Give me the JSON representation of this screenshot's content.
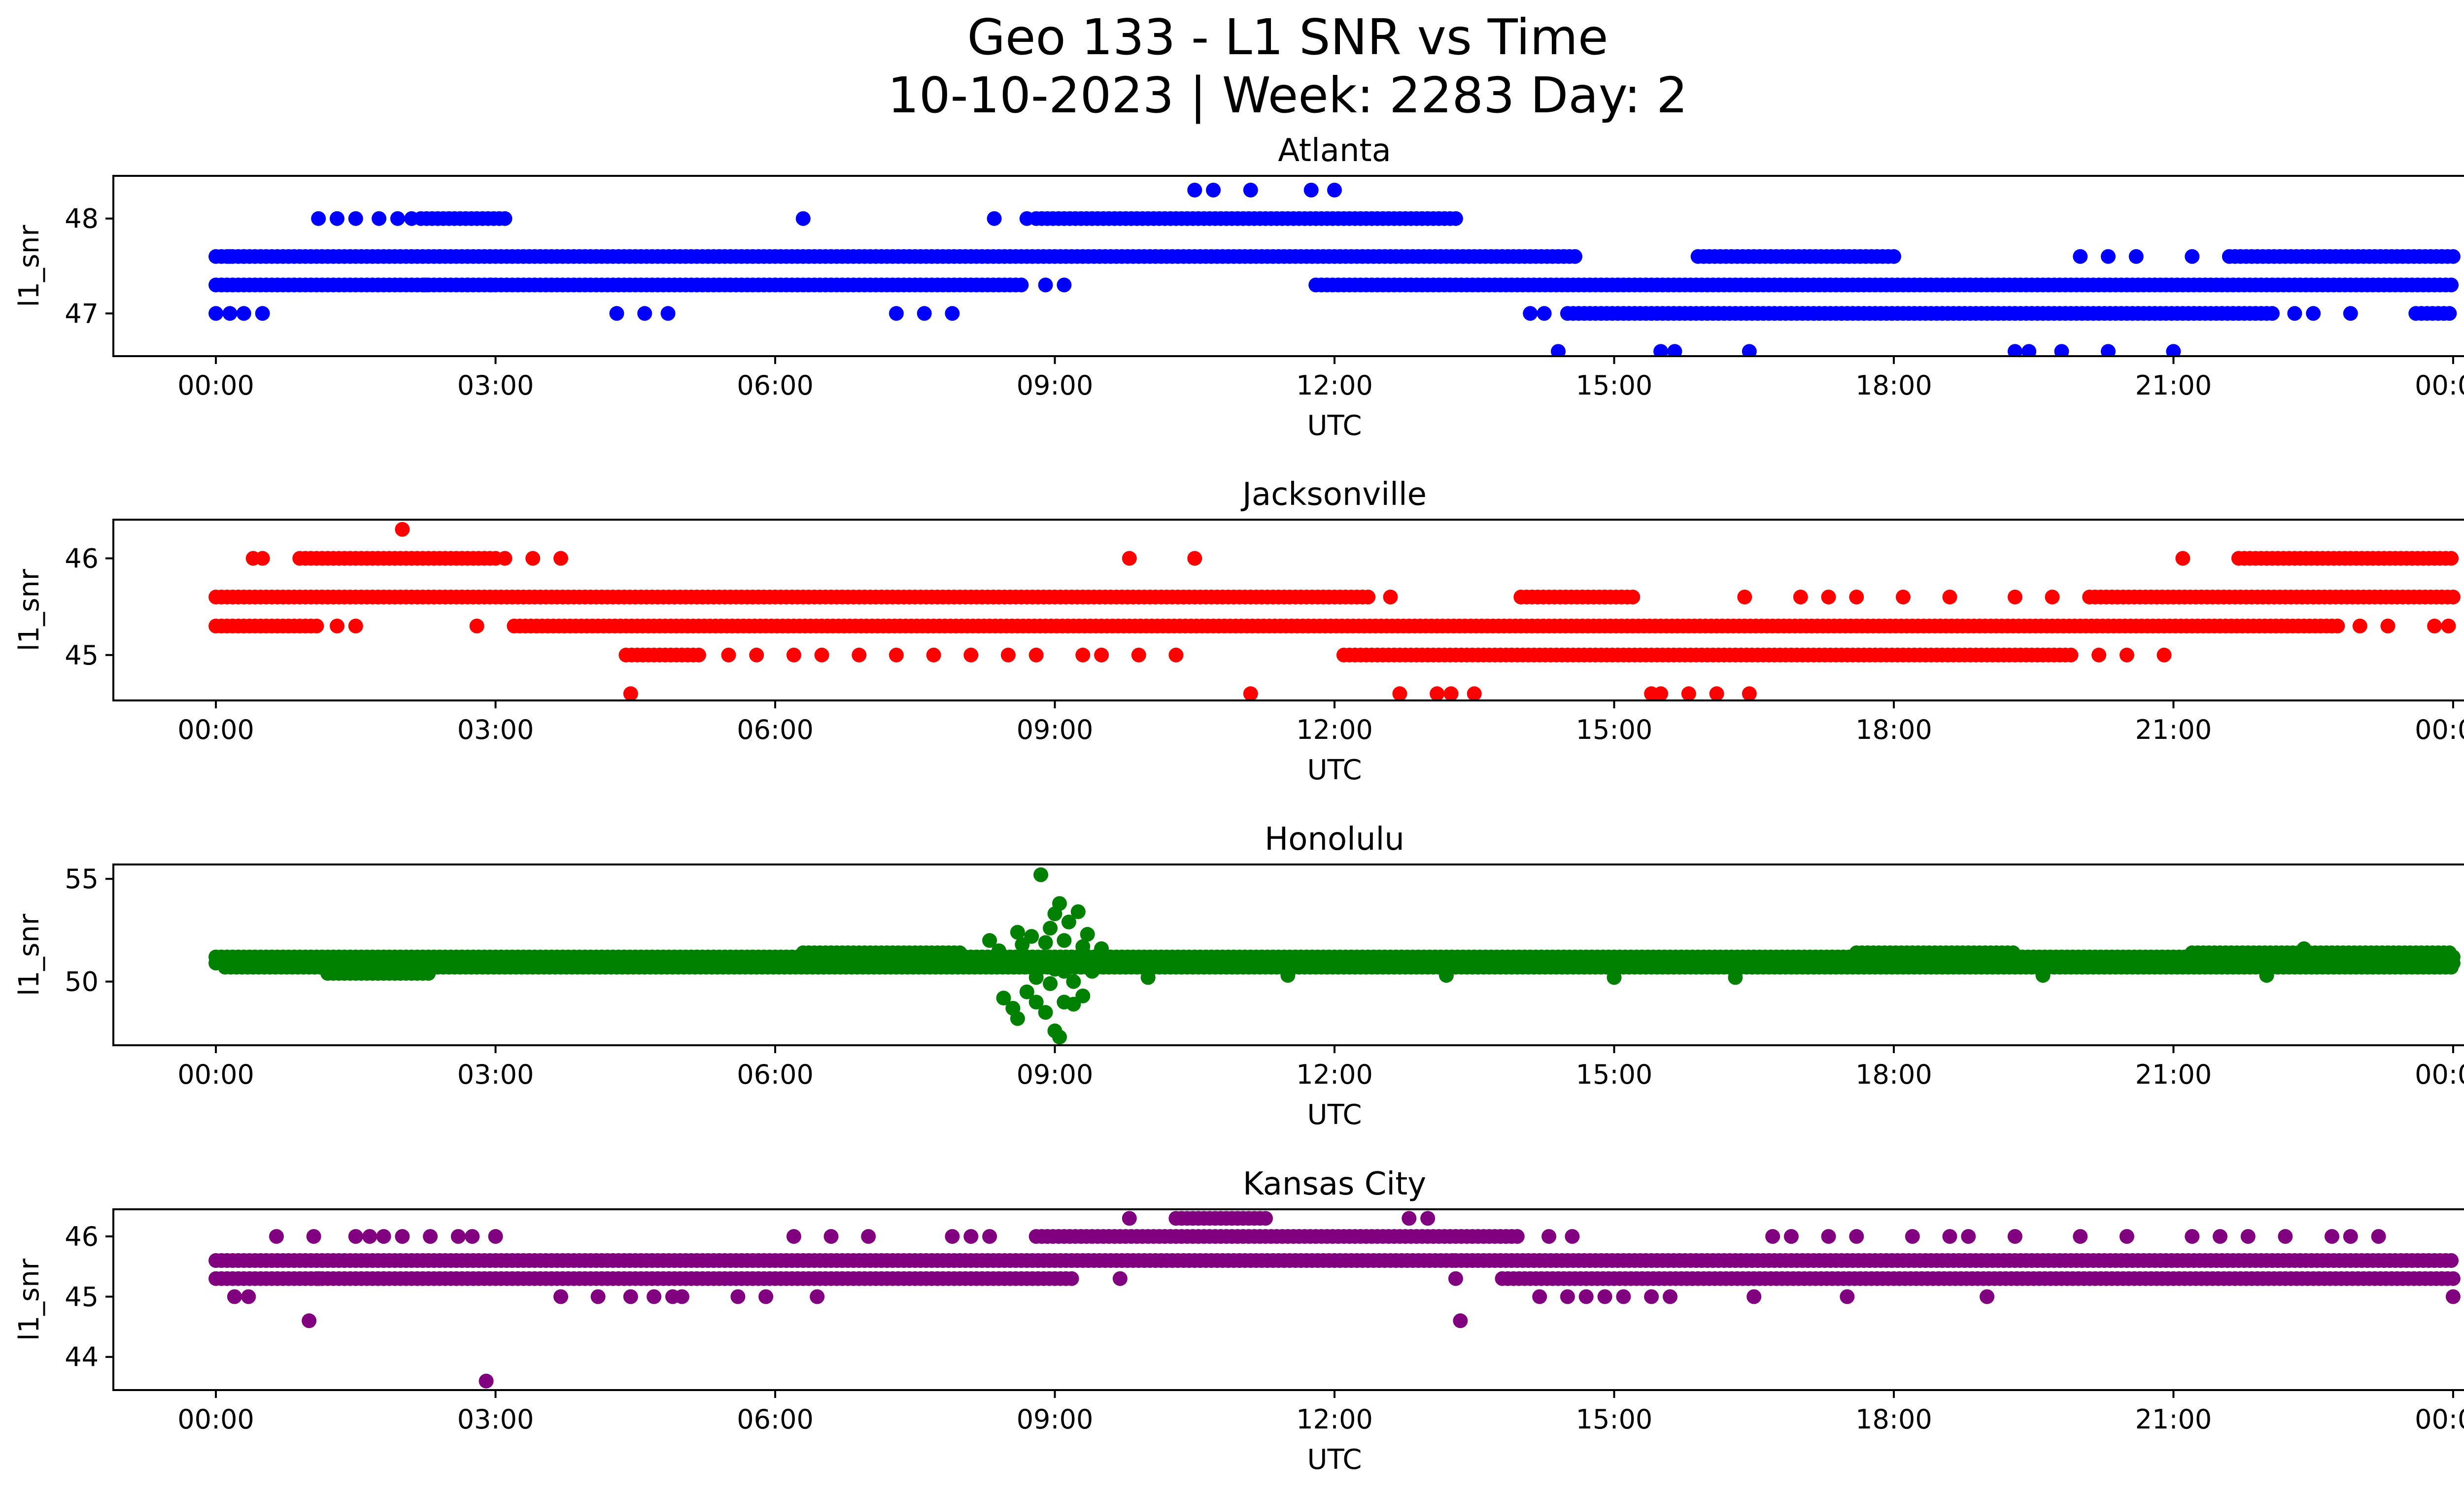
{
  "chart_data": {
    "type": "scatter",
    "title": "Geo 133 - L1 SNR vs Time",
    "subtitle": "10-10-2023 | Week: 2283 Day: 2",
    "x_ticks": [
      "00:00",
      "03:00",
      "06:00",
      "09:00",
      "12:00",
      "15:00",
      "18:00",
      "21:00",
      "00:00"
    ],
    "xlim": [
      -1.1,
      25.1
    ],
    "grid": false,
    "panels": [
      {
        "title": "Atlanta",
        "xlabel": "UTC",
        "ylabel": "l1_snr",
        "color": "#0000ff",
        "ylim": [
          46.55,
          48.45
        ],
        "y_ticks": [
          47,
          48
        ],
        "bands": [
          {
            "y": 47.6,
            "x": [
              [
                0.0,
                14.6
              ],
              [
                15.9,
                18.0
              ],
              [
                21.6,
                24.0
              ]
            ]
          },
          {
            "y": 47.3,
            "x": [
              [
                0.0,
                8.65
              ],
              [
                11.8,
                24.0
              ]
            ]
          },
          {
            "y": 47.0,
            "x": [
              [
                14.5,
                22.1
              ],
              [
                23.6,
                24.0
              ]
            ]
          },
          {
            "y": 48.0,
            "x": [
              [
                2.2,
                3.15
              ],
              [
                8.8,
                13.3
              ]
            ]
          }
        ],
        "points": [
          [
            0.0,
            47.0
          ],
          [
            0.15,
            47.0
          ],
          [
            0.3,
            47.0
          ],
          [
            0.5,
            47.0
          ],
          [
            4.3,
            47.0
          ],
          [
            4.6,
            47.0
          ],
          [
            4.85,
            47.0
          ],
          [
            7.3,
            47.0
          ],
          [
            7.6,
            47.0
          ],
          [
            7.9,
            47.0
          ],
          [
            14.1,
            47.0
          ],
          [
            14.25,
            47.0
          ],
          [
            22.3,
            47.0
          ],
          [
            22.5,
            47.0
          ],
          [
            22.9,
            47.0
          ],
          [
            1.1,
            48.0
          ],
          [
            1.3,
            48.0
          ],
          [
            1.5,
            48.0
          ],
          [
            1.75,
            48.0
          ],
          [
            1.95,
            48.0
          ],
          [
            2.1,
            48.0
          ],
          [
            6.3,
            48.0
          ],
          [
            8.35,
            48.0
          ],
          [
            8.7,
            48.0
          ],
          [
            0.15,
            47.6
          ],
          [
            0.3,
            47.6
          ],
          [
            2.25,
            47.3
          ],
          [
            2.7,
            47.3
          ],
          [
            2.95,
            47.3
          ],
          [
            8.9,
            47.3
          ],
          [
            9.1,
            47.3
          ],
          [
            14.4,
            46.6
          ],
          [
            15.5,
            46.6
          ],
          [
            15.65,
            46.6
          ],
          [
            16.45,
            46.6
          ],
          [
            19.3,
            46.6
          ],
          [
            19.45,
            46.6
          ],
          [
            19.8,
            46.6
          ],
          [
            20.3,
            46.6
          ],
          [
            21.0,
            46.6
          ],
          [
            10.5,
            48.3
          ],
          [
            10.7,
            48.3
          ],
          [
            11.1,
            48.3
          ],
          [
            11.75,
            48.3
          ],
          [
            12.0,
            48.3
          ],
          [
            20.0,
            47.6
          ],
          [
            20.3,
            47.6
          ],
          [
            20.6,
            47.6
          ],
          [
            21.2,
            47.6
          ]
        ]
      },
      {
        "title": "Jacksonville",
        "xlabel": "UTC",
        "ylabel": "l1_snr",
        "color": "#ff0000",
        "ylim": [
          44.53,
          46.4
        ],
        "y_ticks": [
          45,
          46
        ],
        "bands": [
          {
            "y": 45.6,
            "x": [
              [
                0.0,
                12.4
              ],
              [
                14.0,
                15.2
              ],
              [
                20.1,
                24.0
              ]
            ]
          },
          {
            "y": 45.3,
            "x": [
              [
                0.0,
                1.1
              ],
              [
                3.2,
                22.8
              ]
            ]
          },
          {
            "y": 45.0,
            "x": [
              [
                4.4,
                5.2
              ],
              [
                12.1,
                19.9
              ]
            ]
          },
          {
            "y": 46.0,
            "x": [
              [
                0.9,
                3.0
              ],
              [
                21.7,
                24.0
              ]
            ]
          }
        ],
        "points": [
          [
            0.4,
            46.0
          ],
          [
            0.5,
            46.0
          ],
          [
            3.1,
            46.0
          ],
          [
            3.4,
            46.0
          ],
          [
            3.7,
            46.0
          ],
          [
            9.8,
            46.0
          ],
          [
            10.5,
            46.0
          ],
          [
            21.1,
            46.0
          ],
          [
            2.0,
            46.3
          ],
          [
            1.3,
            45.3
          ],
          [
            1.5,
            45.3
          ],
          [
            2.8,
            45.3
          ],
          [
            23.0,
            45.3
          ],
          [
            23.3,
            45.3
          ],
          [
            23.8,
            45.3
          ],
          [
            23.95,
            45.3
          ],
          [
            5.5,
            45.0
          ],
          [
            5.8,
            45.0
          ],
          [
            6.2,
            45.0
          ],
          [
            6.5,
            45.0
          ],
          [
            6.9,
            45.0
          ],
          [
            7.3,
            45.0
          ],
          [
            7.7,
            45.0
          ],
          [
            8.1,
            45.0
          ],
          [
            8.5,
            45.0
          ],
          [
            8.8,
            45.0
          ],
          [
            9.3,
            45.0
          ],
          [
            9.5,
            45.0
          ],
          [
            9.9,
            45.0
          ],
          [
            10.3,
            45.0
          ],
          [
            20.2,
            45.0
          ],
          [
            20.5,
            45.0
          ],
          [
            20.9,
            45.0
          ],
          [
            4.45,
            44.6
          ],
          [
            11.1,
            44.6
          ],
          [
            12.7,
            44.6
          ],
          [
            13.1,
            44.6
          ],
          [
            13.25,
            44.6
          ],
          [
            13.5,
            44.6
          ],
          [
            15.4,
            44.6
          ],
          [
            15.5,
            44.6
          ],
          [
            15.8,
            44.6
          ],
          [
            16.1,
            44.6
          ],
          [
            16.45,
            44.6
          ],
          [
            12.6,
            45.6
          ],
          [
            16.4,
            45.6
          ],
          [
            17.0,
            45.6
          ],
          [
            17.3,
            45.6
          ],
          [
            17.6,
            45.6
          ],
          [
            18.1,
            45.6
          ],
          [
            18.6,
            45.6
          ],
          [
            19.3,
            45.6
          ],
          [
            19.7,
            45.6
          ],
          [
            14.9,
            45.6
          ]
        ]
      },
      {
        "title": "Honolulu",
        "xlabel": "UTC",
        "ylabel": "l1_snr",
        "color": "#008000",
        "ylim": [
          46.9,
          55.7
        ],
        "y_ticks": [
          50,
          55
        ],
        "bands": [
          {
            "y": 51.2,
            "x": [
              [
                0.0,
                24.0
              ]
            ]
          },
          {
            "y": 50.9,
            "x": [
              [
                0.0,
                24.0
              ]
            ]
          },
          {
            "y": 50.7,
            "x": [
              [
                0.1,
                24.0
              ]
            ]
          },
          {
            "y": 51.4,
            "x": [
              [
                6.3,
                8.0
              ],
              [
                17.6,
                19.3
              ],
              [
                21.2,
                24.0
              ]
            ]
          },
          {
            "y": 50.4,
            "x": [
              [
                1.2,
                2.3
              ]
            ]
          }
        ],
        "points": [
          [
            8.3,
            52.0
          ],
          [
            8.45,
            49.2
          ],
          [
            8.55,
            48.7
          ],
          [
            8.6,
            48.2
          ],
          [
            8.65,
            51.8
          ],
          [
            8.7,
            49.5
          ],
          [
            8.75,
            52.2
          ],
          [
            8.8,
            49.0
          ],
          [
            8.85,
            55.2
          ],
          [
            8.9,
            48.5
          ],
          [
            8.95,
            52.6
          ],
          [
            9.0,
            53.3
          ],
          [
            9.0,
            47.6
          ],
          [
            9.05,
            53.8
          ],
          [
            9.1,
            49.0
          ],
          [
            9.15,
            52.9
          ],
          [
            9.2,
            50.0
          ],
          [
            9.25,
            53.4
          ],
          [
            9.3,
            49.3
          ],
          [
            9.35,
            52.3
          ],
          [
            9.4,
            50.5
          ],
          [
            9.5,
            51.6
          ],
          [
            8.4,
            51.5
          ],
          [
            8.5,
            50.8
          ],
          [
            8.6,
            52.4
          ],
          [
            8.7,
            51.0
          ],
          [
            8.8,
            50.2
          ],
          [
            8.9,
            51.9
          ],
          [
            9.0,
            50.6
          ],
          [
            9.1,
            52.0
          ],
          [
            9.2,
            48.9
          ],
          [
            9.3,
            51.7
          ],
          [
            9.05,
            47.3
          ],
          [
            9.1,
            50.5
          ],
          [
            8.95,
            49.9
          ],
          [
            9.45,
            50.9
          ],
          [
            10.0,
            50.2
          ],
          [
            11.5,
            50.3
          ],
          [
            13.2,
            50.3
          ],
          [
            16.3,
            50.2
          ],
          [
            19.6,
            50.3
          ],
          [
            22.0,
            50.3
          ],
          [
            22.4,
            51.6
          ],
          [
            15.0,
            50.2
          ]
        ]
      },
      {
        "title": "Kansas City",
        "xlabel": "UTC",
        "ylabel": "l1_snr",
        "color": "#800080",
        "ylim": [
          43.45,
          46.45
        ],
        "y_ticks": [
          44,
          45,
          46
        ],
        "bands": [
          {
            "y": 45.6,
            "x": [
              [
                0.0,
                13.3
              ],
              [
                13.3,
                24.0
              ]
            ]
          },
          {
            "y": 45.3,
            "x": [
              [
                0.0,
                9.2
              ],
              [
                13.8,
                24.0
              ]
            ]
          },
          {
            "y": 46.0,
            "x": [
              [
                8.8,
                14.0
              ]
            ]
          },
          {
            "y": 46.3,
            "x": [
              [
                10.3,
                11.3
              ]
            ]
          }
        ],
        "points": [
          [
            0.2,
            45.0
          ],
          [
            0.35,
            45.0
          ],
          [
            3.7,
            45.0
          ],
          [
            4.1,
            45.0
          ],
          [
            4.45,
            45.0
          ],
          [
            4.7,
            45.0
          ],
          [
            4.9,
            45.0
          ],
          [
            5.0,
            45.0
          ],
          [
            5.6,
            45.0
          ],
          [
            5.9,
            45.0
          ],
          [
            6.45,
            45.0
          ],
          [
            14.2,
            45.0
          ],
          [
            14.5,
            45.0
          ],
          [
            14.7,
            45.0
          ],
          [
            14.9,
            45.0
          ],
          [
            15.1,
            45.0
          ],
          [
            15.4,
            45.0
          ],
          [
            15.6,
            45.0
          ],
          [
            16.5,
            45.0
          ],
          [
            17.5,
            45.0
          ],
          [
            19.0,
            45.0
          ],
          [
            24.0,
            45.0
          ],
          [
            1.0,
            44.6
          ],
          [
            13.35,
            44.6
          ],
          [
            2.9,
            43.6
          ],
          [
            0.65,
            46.0
          ],
          [
            1.05,
            46.0
          ],
          [
            1.5,
            46.0
          ],
          [
            1.65,
            46.0
          ],
          [
            1.8,
            46.0
          ],
          [
            2.0,
            46.0
          ],
          [
            2.3,
            46.0
          ],
          [
            2.6,
            46.0
          ],
          [
            2.75,
            46.0
          ],
          [
            3.0,
            46.0
          ],
          [
            6.2,
            46.0
          ],
          [
            6.6,
            46.0
          ],
          [
            7.0,
            46.0
          ],
          [
            7.9,
            46.0
          ],
          [
            8.1,
            46.0
          ],
          [
            8.3,
            46.0
          ],
          [
            14.3,
            46.0
          ],
          [
            14.55,
            46.0
          ],
          [
            16.7,
            46.0
          ],
          [
            16.9,
            46.0
          ],
          [
            17.3,
            46.0
          ],
          [
            17.6,
            46.0
          ],
          [
            18.2,
            46.0
          ],
          [
            18.6,
            46.0
          ],
          [
            18.8,
            46.0
          ],
          [
            19.3,
            46.0
          ],
          [
            20.0,
            46.0
          ],
          [
            20.5,
            46.0
          ],
          [
            21.2,
            46.0
          ],
          [
            21.5,
            46.0
          ],
          [
            21.8,
            46.0
          ],
          [
            22.2,
            46.0
          ],
          [
            22.7,
            46.0
          ],
          [
            22.9,
            46.0
          ],
          [
            23.2,
            46.0
          ],
          [
            9.8,
            46.3
          ],
          [
            12.8,
            46.3
          ],
          [
            13.0,
            46.3
          ],
          [
            9.7,
            45.3
          ],
          [
            13.3,
            45.3
          ],
          [
            1.1,
            45.3
          ],
          [
            1.8,
            45.3
          ]
        ]
      }
    ]
  }
}
